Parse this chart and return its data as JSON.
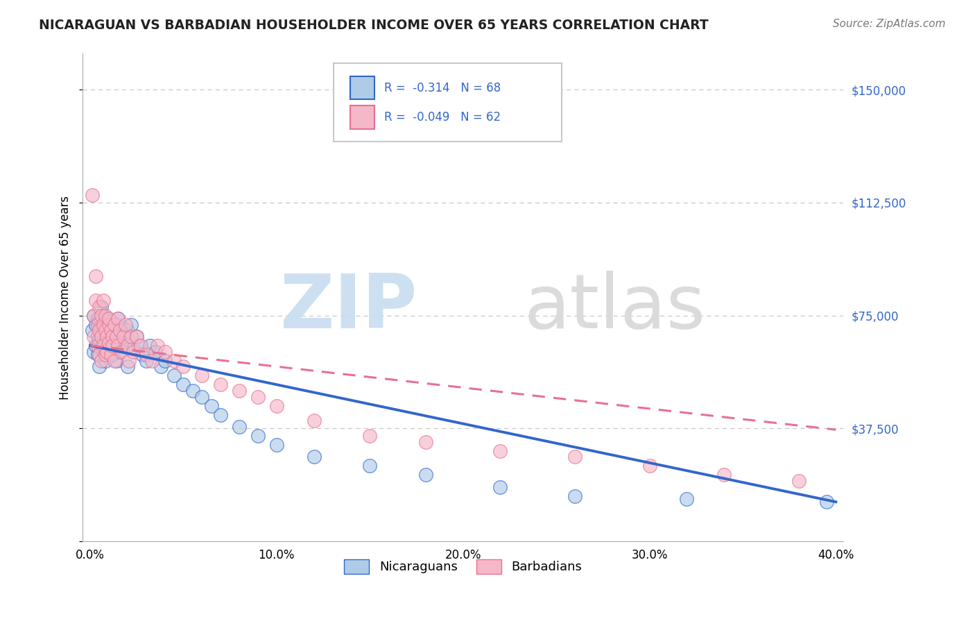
{
  "title": "NICARAGUAN VS BARBADIAN HOUSEHOLDER INCOME OVER 65 YEARS CORRELATION CHART",
  "source": "Source: ZipAtlas.com",
  "ylabel": "Householder Income Over 65 years",
  "xlim": [
    -0.004,
    0.404
  ],
  "ylim": [
    0,
    162000
  ],
  "yticks": [
    0,
    37500,
    75000,
    112500,
    150000
  ],
  "ytick_labels": [
    "",
    "$37,500",
    "$75,000",
    "$112,500",
    "$150,000"
  ],
  "xticks": [
    0.0,
    0.1,
    0.2,
    0.3,
    0.4
  ],
  "xtick_labels": [
    "0.0%",
    "10.0%",
    "20.0%",
    "30.0%",
    "40.0%"
  ],
  "legend_line1": "R=  -0.314   N = 68",
  "legend_line2": "R=  -0.049   N = 62",
  "nicaraguan_color": "#aecce8",
  "barbadian_color": "#f5b8c8",
  "trend_blue": "#3366cc",
  "trend_pink": "#e87090",
  "background_color": "#ffffff",
  "grid_color": "#c8c8c8",
  "nicaraguan_x": [
    0.001,
    0.002,
    0.002,
    0.003,
    0.003,
    0.004,
    0.004,
    0.004,
    0.005,
    0.005,
    0.005,
    0.006,
    0.006,
    0.006,
    0.007,
    0.007,
    0.007,
    0.008,
    0.008,
    0.008,
    0.009,
    0.009,
    0.01,
    0.01,
    0.01,
    0.011,
    0.011,
    0.012,
    0.012,
    0.013,
    0.013,
    0.014,
    0.014,
    0.015,
    0.015,
    0.016,
    0.016,
    0.017,
    0.018,
    0.019,
    0.02,
    0.02,
    0.022,
    0.023,
    0.025,
    0.026,
    0.028,
    0.03,
    0.032,
    0.035,
    0.038,
    0.04,
    0.045,
    0.05,
    0.055,
    0.06,
    0.065,
    0.07,
    0.08,
    0.09,
    0.1,
    0.12,
    0.15,
    0.18,
    0.22,
    0.26,
    0.32,
    0.395
  ],
  "nicaraguan_y": [
    70000,
    75000,
    63000,
    72000,
    65000,
    74000,
    68000,
    62000,
    73000,
    67000,
    58000,
    72000,
    65000,
    78000,
    70000,
    63000,
    75000,
    68000,
    72000,
    60000,
    66000,
    74000,
    71000,
    64000,
    69000,
    67000,
    73000,
    62000,
    70000,
    65000,
    68000,
    72000,
    60000,
    74000,
    66000,
    68000,
    63000,
    71000,
    69000,
    65000,
    70000,
    58000,
    72000,
    64000,
    68000,
    65000,
    62000,
    60000,
    65000,
    63000,
    58000,
    60000,
    55000,
    52000,
    50000,
    48000,
    45000,
    42000,
    38000,
    35000,
    32000,
    28000,
    25000,
    22000,
    18000,
    15000,
    14000,
    13000
  ],
  "barbadian_x": [
    0.001,
    0.002,
    0.002,
    0.003,
    0.003,
    0.004,
    0.004,
    0.005,
    0.005,
    0.005,
    0.006,
    0.006,
    0.006,
    0.007,
    0.007,
    0.007,
    0.008,
    0.008,
    0.008,
    0.009,
    0.009,
    0.01,
    0.01,
    0.01,
    0.011,
    0.011,
    0.012,
    0.012,
    0.013,
    0.013,
    0.014,
    0.015,
    0.015,
    0.016,
    0.017,
    0.018,
    0.019,
    0.02,
    0.021,
    0.022,
    0.023,
    0.025,
    0.027,
    0.03,
    0.033,
    0.036,
    0.04,
    0.045,
    0.05,
    0.06,
    0.07,
    0.08,
    0.09,
    0.1,
    0.12,
    0.15,
    0.18,
    0.22,
    0.26,
    0.3,
    0.34,
    0.38
  ],
  "barbadian_y": [
    115000,
    75000,
    68000,
    80000,
    88000,
    72000,
    65000,
    78000,
    70000,
    62000,
    75000,
    68000,
    60000,
    80000,
    65000,
    72000,
    70000,
    62000,
    75000,
    68000,
    63000,
    72000,
    66000,
    74000,
    70000,
    62000,
    68000,
    65000,
    72000,
    60000,
    68000,
    74000,
    65000,
    70000,
    63000,
    68000,
    72000,
    65000,
    60000,
    68000,
    63000,
    68000,
    65000,
    62000,
    60000,
    65000,
    63000,
    60000,
    58000,
    55000,
    52000,
    50000,
    48000,
    45000,
    40000,
    35000,
    33000,
    30000,
    28000,
    25000,
    22000,
    20000
  ],
  "trend_blue_x0": 0.0,
  "trend_blue_y0": 65000,
  "trend_blue_x1": 0.4,
  "trend_blue_y1": 13000,
  "trend_pink_x0": 0.0,
  "trend_pink_y0": 65000,
  "trend_pink_x1": 0.4,
  "trend_pink_y1": 37000
}
